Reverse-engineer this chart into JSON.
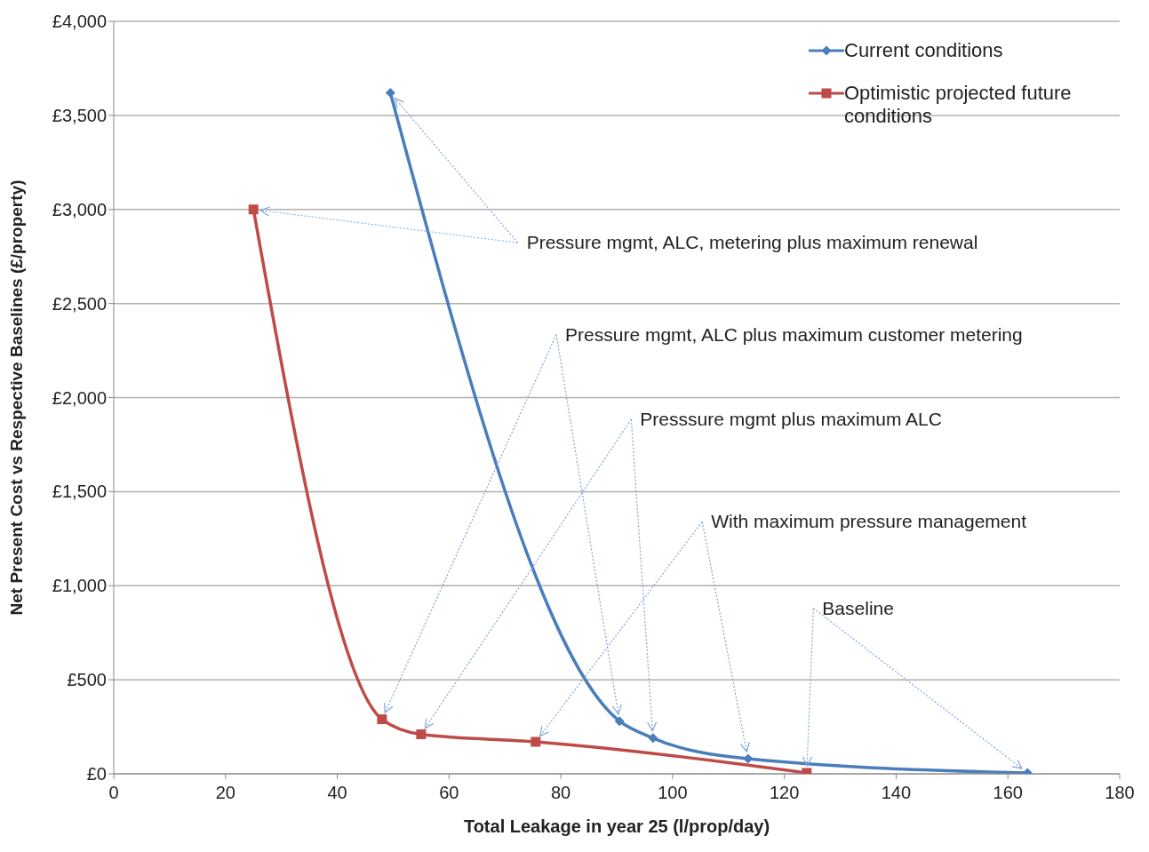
{
  "chart_data": {
    "type": "line",
    "xlabel": "Total Leakage in year 25 (l/prop/day)",
    "ylabel": "Net Present Cost vs Respective Baselines (£/property)",
    "xlim": [
      0,
      180
    ],
    "xticks": [
      0,
      20,
      40,
      60,
      80,
      100,
      120,
      140,
      160,
      180
    ],
    "ylim": [
      0,
      4000
    ],
    "yticks": [
      {
        "value": 0,
        "label": "£0"
      },
      {
        "value": 500,
        "label": "£500"
      },
      {
        "value": 1000,
        "label": "£1,000"
      },
      {
        "value": 1500,
        "label": "£1,500"
      },
      {
        "value": 2000,
        "label": "£2,000"
      },
      {
        "value": 2500,
        "label": "£2,500"
      },
      {
        "value": 3000,
        "label": "£3,000"
      },
      {
        "value": 3500,
        "label": "£3,500"
      },
      {
        "value": 4000,
        "label": "£4,000"
      }
    ],
    "grid": "y",
    "legend": "top right",
    "series": [
      {
        "name": "Current conditions",
        "color": "#4a7ebb",
        "marker": "diamond",
        "x": [
          49.5,
          90.5,
          96.5,
          113.5,
          163.5
        ],
        "values": [
          3620,
          280,
          190,
          80,
          5
        ]
      },
      {
        "name": "Optimistic projected future conditions",
        "color": "#be4b48",
        "marker": "square",
        "x": [
          25,
          48,
          55,
          75.5,
          124
        ],
        "values": [
          3000,
          290,
          210,
          170,
          5
        ]
      }
    ],
    "annotations": [
      {
        "text": "Pressure mgmt, ALC, metering plus maximum renewal",
        "x": 49.5,
        "y": 3620
      },
      {
        "text": "Pressure mgmt, ALC plus maximum customer metering",
        "x": 90.5,
        "y": 280
      },
      {
        "text": "Presssure mgmt plus maximum ALC",
        "x": 96.5,
        "y": 190
      },
      {
        "text": "With maximum pressure management",
        "x": 113.5,
        "y": 80
      },
      {
        "text": "Baseline",
        "x": 163.5,
        "y": 5
      }
    ]
  }
}
